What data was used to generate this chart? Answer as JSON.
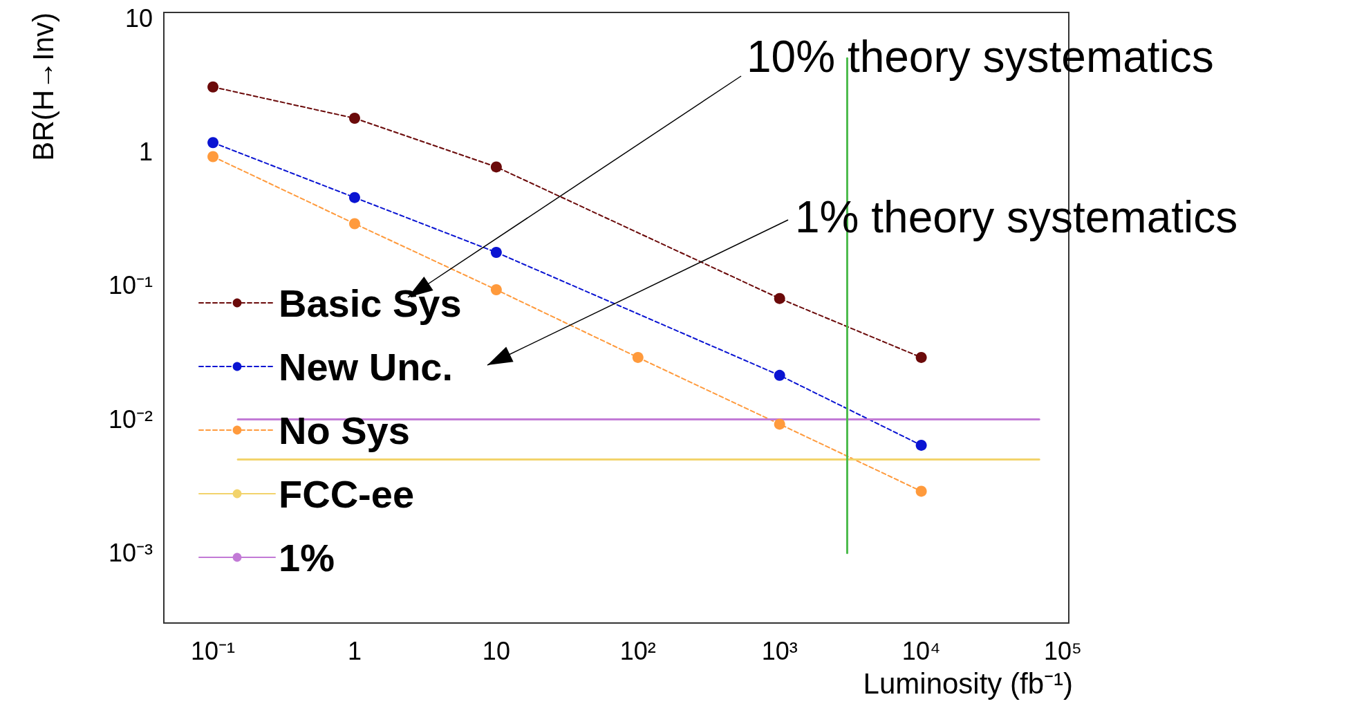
{
  "chart_data": {
    "type": "line",
    "xlabel": "Luminosity (fb⁻¹)",
    "ylabel": "BR(H→Inv)",
    "annotations": [
      "10% theory systematics",
      "1% theory systematics"
    ],
    "x": [
      0.1,
      1,
      10,
      1000,
      10000
    ],
    "series": [
      {
        "name": "Basic Sys",
        "color": "#6b0a0a",
        "values": [
          3.05,
          1.78,
          0.77,
          0.08,
          0.029
        ]
      },
      {
        "name": "New Unc.",
        "color": "#0a14d2",
        "values": [
          1.17,
          0.455,
          0.177,
          0.0213,
          0.0064
        ]
      },
      {
        "name": "No Sys",
        "color": "#ff9a3c",
        "x": [
          0.1,
          1,
          10,
          100,
          1000,
          10000
        ],
        "values": [
          0.92,
          0.29,
          0.093,
          0.029,
          0.0092,
          0.0029
        ]
      },
      {
        "name": "FCC-ee",
        "color": "#f2d36b",
        "x": [
          0.15,
          68000
        ],
        "values": [
          0.005,
          0.005
        ],
        "marker": "none",
        "line_style": "solid"
      },
      {
        "name": "1%",
        "color": "#c27ad6",
        "x": [
          0.15,
          68000
        ],
        "values": [
          0.01,
          0.01
        ],
        "marker": "none",
        "line_style": "solid"
      },
      {
        "color": "#4cbb4c",
        "x": [
          3000,
          3000
        ],
        "values": [
          0.001,
          5
        ],
        "marker": "none",
        "line_style": "solid"
      }
    ],
    "log": "xy",
    "xlim": [
      0.045,
      110000
    ],
    "ylim": [
      0.0003,
      11
    ],
    "xticks": [
      {
        "value": 0.1,
        "label": "10⁻¹"
      },
      1,
      10,
      {
        "value": 100,
        "label": "10²"
      },
      {
        "value": 1000,
        "label": "10³"
      },
      {
        "value": 10000,
        "label": "10⁴"
      },
      {
        "value": 100000,
        "label": "10⁵"
      }
    ],
    "yticks": [
      {
        "value": 0.001,
        "label": "10⁻³"
      },
      {
        "value": 0.01,
        "label": "10⁻²"
      },
      {
        "value": 0.1,
        "label": "10⁻¹"
      },
      1,
      10
    ],
    "marker": "circle",
    "line_style": "dashed",
    "grid": false,
    "legend": "left"
  }
}
